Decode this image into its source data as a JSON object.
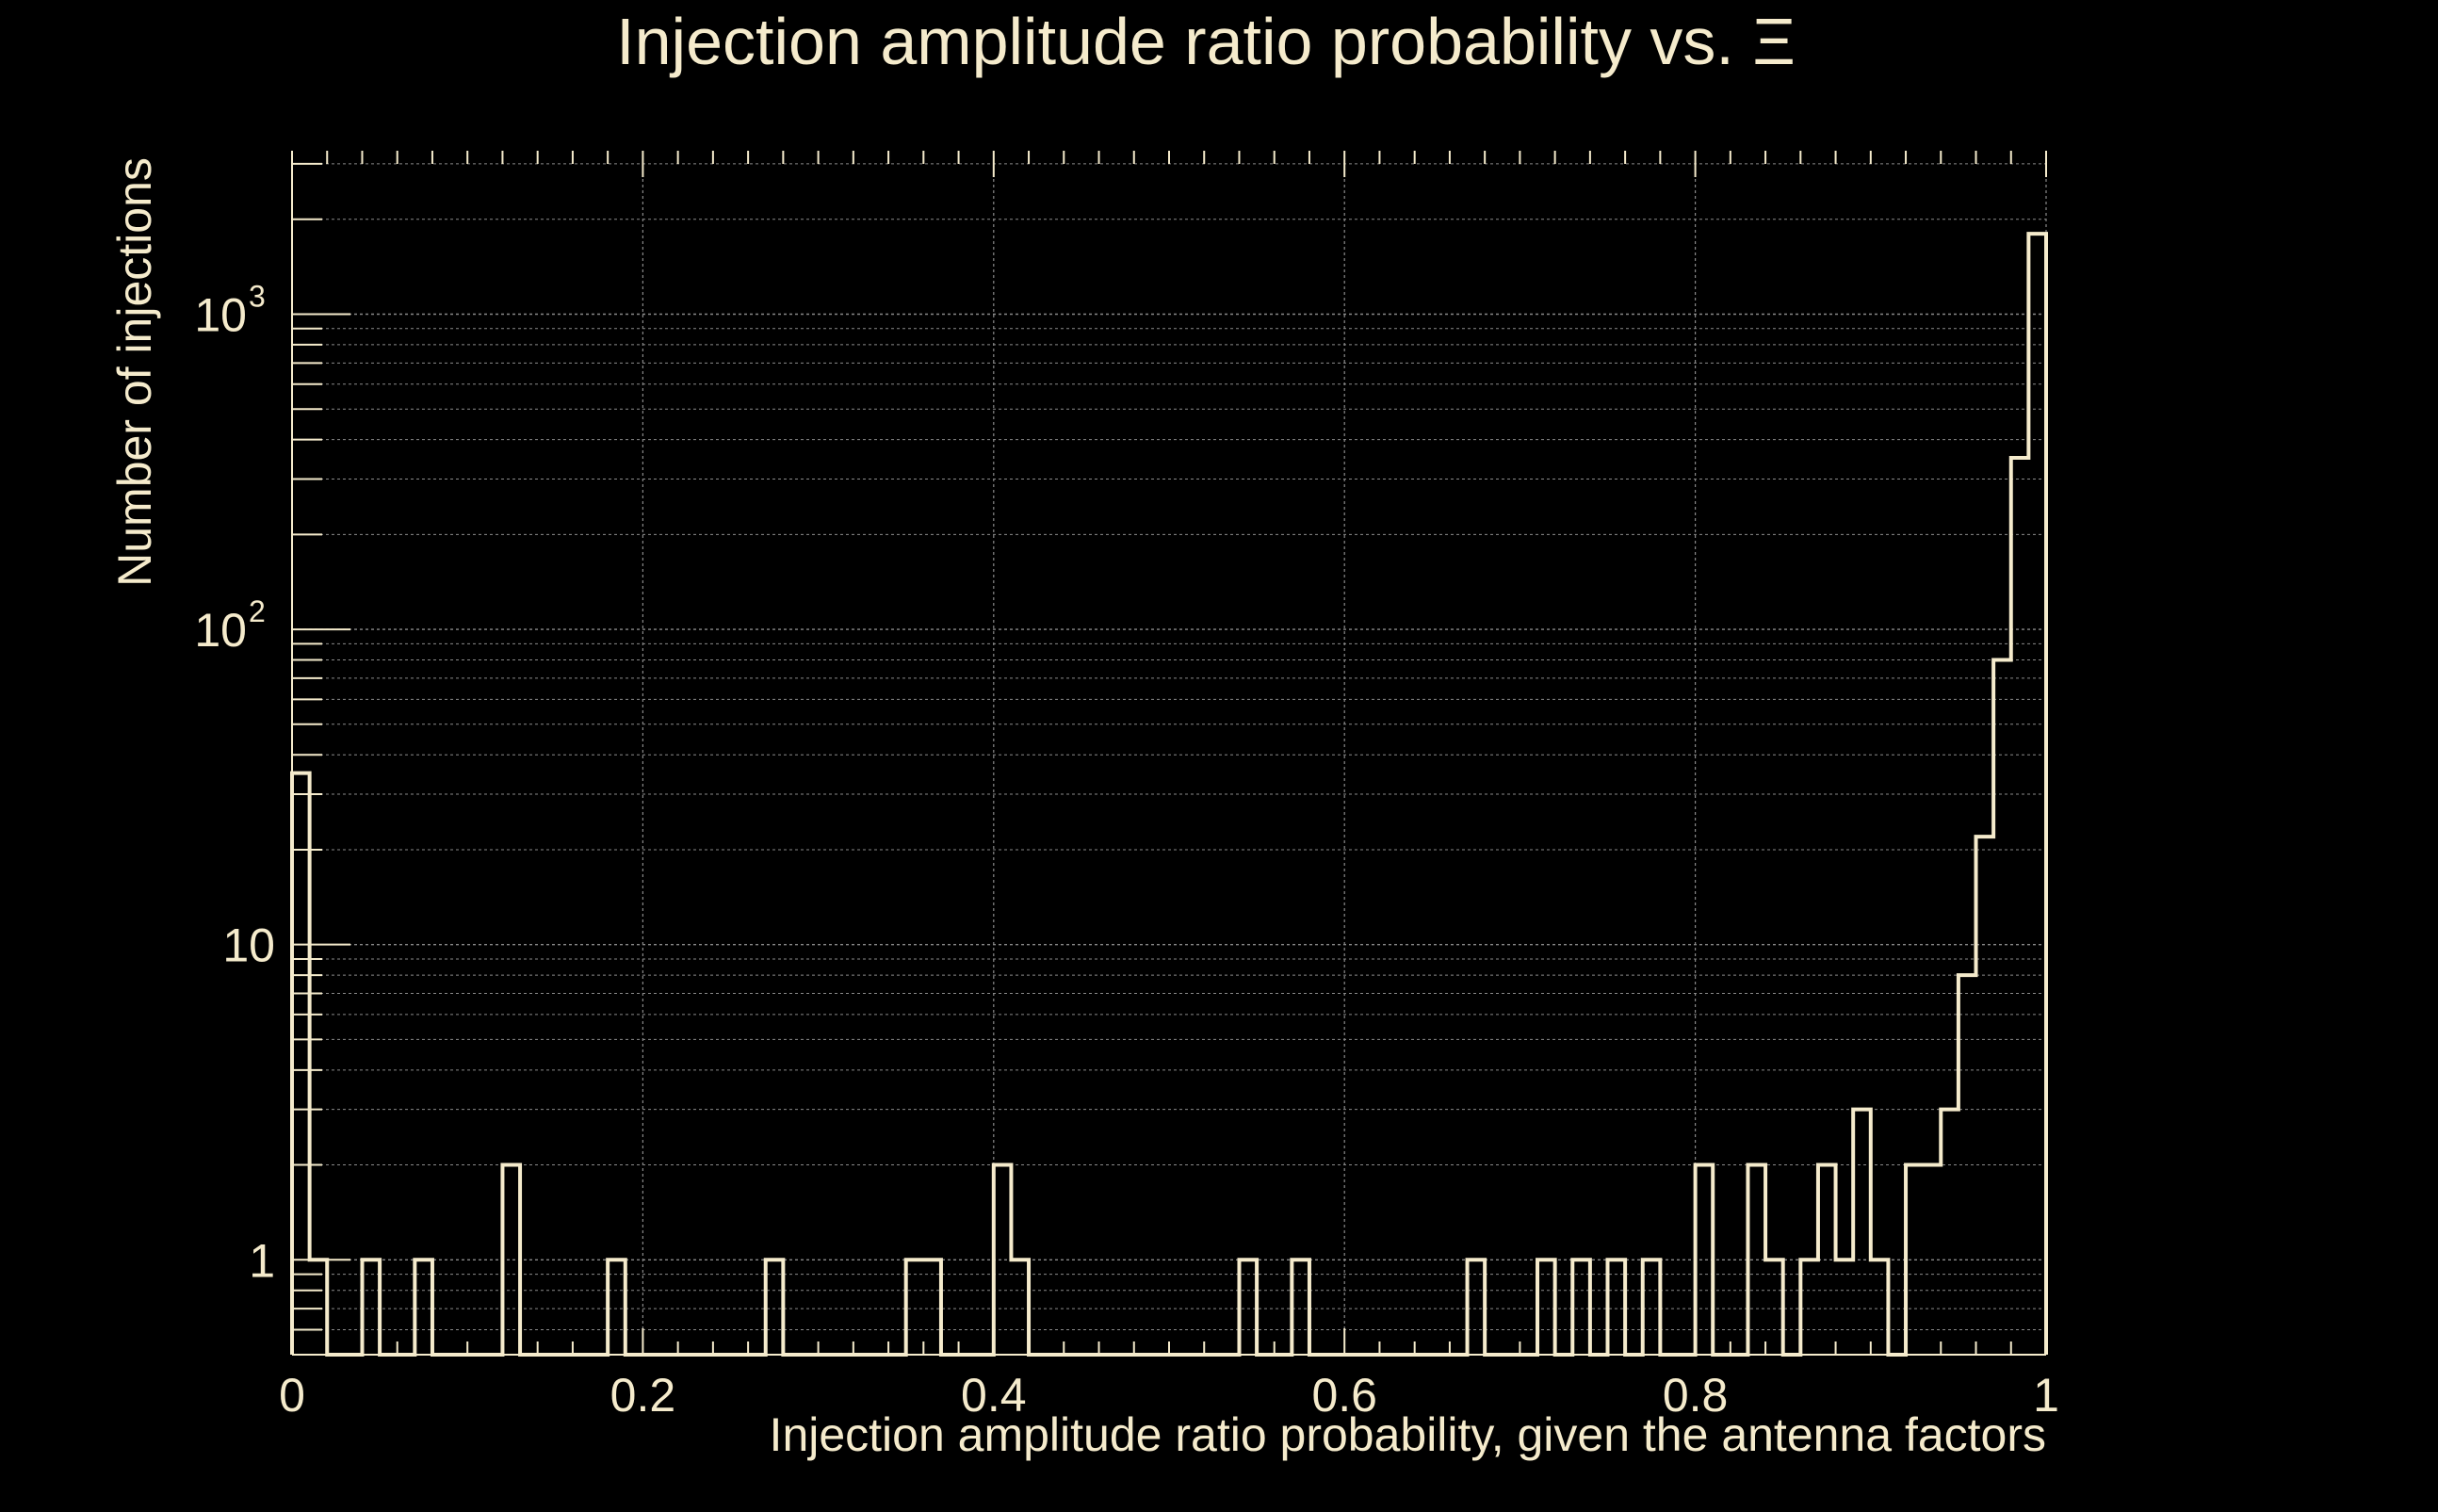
{
  "colors": {
    "background": "#000000",
    "foreground": "#f5ebcc",
    "grid": "#8a8a8a"
  },
  "chart_data": {
    "type": "histogram",
    "title": "Injection amplitude ratio probability vs.  Ξ",
    "xlabel": "Injection amplitude ratio probability, given the antenna factors",
    "ylabel": "Number of injections",
    "xlim": [
      0,
      1
    ],
    "ylim": [
      0.5,
      3300
    ],
    "yscale": "log",
    "grid": true,
    "x_ticks": [
      {
        "value": 0,
        "label": "0"
      },
      {
        "value": 0.2,
        "label": "0.2"
      },
      {
        "value": 0.4,
        "label": "0.4"
      },
      {
        "value": 0.6,
        "label": "0.6"
      },
      {
        "value": 0.8,
        "label": "0.8"
      },
      {
        "value": 1,
        "label": "1"
      }
    ],
    "y_ticks": [
      {
        "value": 1,
        "label": "1",
        "sup": ""
      },
      {
        "value": 10,
        "label": "10",
        "sup": ""
      },
      {
        "value": 100,
        "label": "10",
        "sup": "2"
      },
      {
        "value": 1000,
        "label": "10",
        "sup": "3"
      }
    ],
    "bin_width": 0.01,
    "bins": [
      {
        "x": 0.0,
        "count": 35
      },
      {
        "x": 0.01,
        "count": 1
      },
      {
        "x": 0.04,
        "count": 1
      },
      {
        "x": 0.07,
        "count": 1
      },
      {
        "x": 0.12,
        "count": 2
      },
      {
        "x": 0.18,
        "count": 1
      },
      {
        "x": 0.27,
        "count": 1
      },
      {
        "x": 0.35,
        "count": 1
      },
      {
        "x": 0.36,
        "count": 1
      },
      {
        "x": 0.4,
        "count": 2
      },
      {
        "x": 0.41,
        "count": 1
      },
      {
        "x": 0.54,
        "count": 1
      },
      {
        "x": 0.57,
        "count": 1
      },
      {
        "x": 0.67,
        "count": 1
      },
      {
        "x": 0.71,
        "count": 1
      },
      {
        "x": 0.73,
        "count": 1
      },
      {
        "x": 0.75,
        "count": 1
      },
      {
        "x": 0.77,
        "count": 1
      },
      {
        "x": 0.8,
        "count": 2
      },
      {
        "x": 0.83,
        "count": 2
      },
      {
        "x": 0.84,
        "count": 1
      },
      {
        "x": 0.86,
        "count": 1
      },
      {
        "x": 0.87,
        "count": 2
      },
      {
        "x": 0.88,
        "count": 1
      },
      {
        "x": 0.89,
        "count": 3
      },
      {
        "x": 0.9,
        "count": 1
      },
      {
        "x": 0.92,
        "count": 2
      },
      {
        "x": 0.93,
        "count": 2
      },
      {
        "x": 0.94,
        "count": 3
      },
      {
        "x": 0.95,
        "count": 8
      },
      {
        "x": 0.96,
        "count": 22
      },
      {
        "x": 0.97,
        "count": 80
      },
      {
        "x": 0.98,
        "count": 350
      },
      {
        "x": 0.99,
        "count": 1800
      }
    ]
  }
}
